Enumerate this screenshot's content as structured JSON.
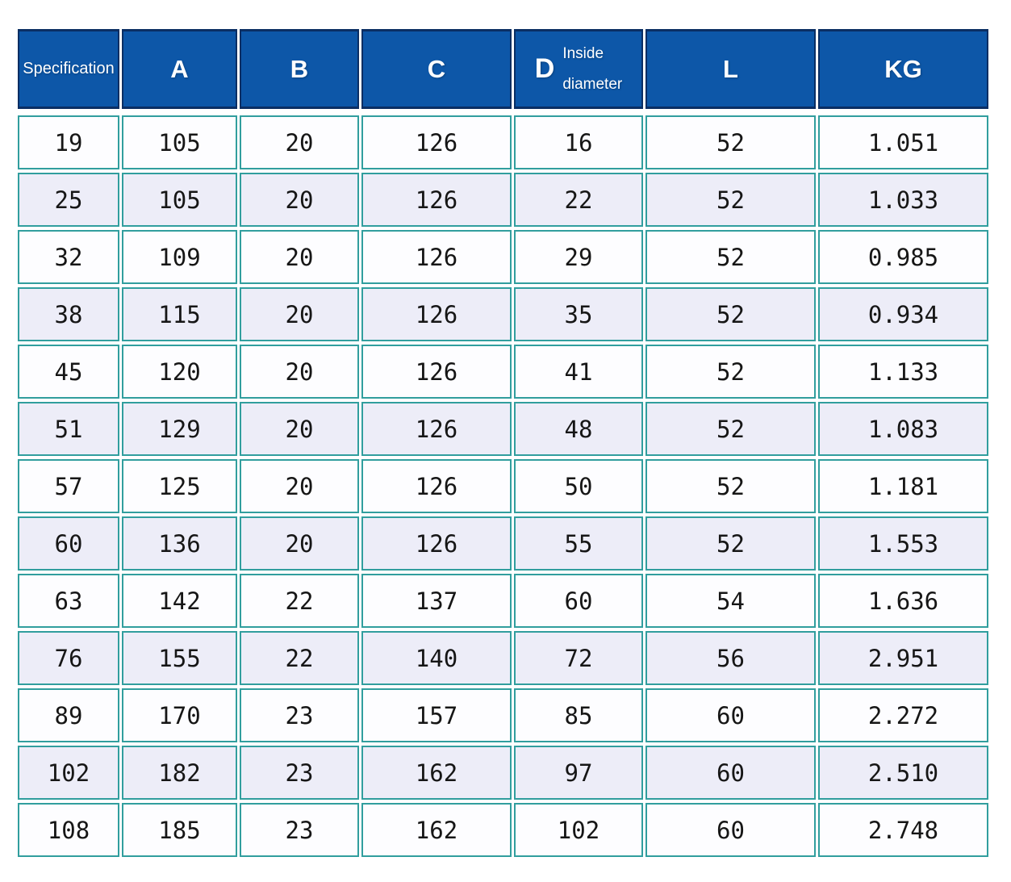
{
  "colors": {
    "header_bg": "#0d57a8",
    "header_border": "#0a2e63",
    "header_text": "#ffffff",
    "body_border": "#319e9e",
    "row_bg": "#fdfdff",
    "row_alt_bg": "#ededf8",
    "cell_text": "#161616"
  },
  "header": {
    "spec": "Specification",
    "a": "A",
    "b": "B",
    "c": "C",
    "d": "D",
    "d_sub1": "Inside",
    "d_sub2": "diameter",
    "l": "L",
    "kg": "KG"
  },
  "body": {
    "rows": [
      [
        "19",
        "105",
        "20",
        "126",
        "16",
        "52",
        "1.051"
      ],
      [
        "25",
        "105",
        "20",
        "126",
        "22",
        "52",
        "1.033"
      ],
      [
        "32",
        "109",
        "20",
        "126",
        "29",
        "52",
        "0.985"
      ],
      [
        "38",
        "115",
        "20",
        "126",
        "35",
        "52",
        "0.934"
      ],
      [
        "45",
        "120",
        "20",
        "126",
        "41",
        "52",
        "1.133"
      ],
      [
        "51",
        "129",
        "20",
        "126",
        "48",
        "52",
        "1.083"
      ],
      [
        "57",
        "125",
        "20",
        "126",
        "50",
        "52",
        "1.181"
      ],
      [
        "60",
        "136",
        "20",
        "126",
        "55",
        "52",
        "1.553"
      ],
      [
        "63",
        "142",
        "22",
        "137",
        "60",
        "54",
        "1.636"
      ],
      [
        "76",
        "155",
        "22",
        "140",
        "72",
        "56",
        "2.951"
      ],
      [
        "89",
        "170",
        "23",
        "157",
        "85",
        "60",
        "2.272"
      ],
      [
        "102",
        "182",
        "23",
        "162",
        "97",
        "60",
        "2.510"
      ],
      [
        "108",
        "185",
        "23",
        "162",
        "102",
        "60",
        "2.748"
      ]
    ]
  },
  "chart_data": {
    "type": "table",
    "title": "",
    "columns": [
      "Specification",
      "A",
      "B",
      "C",
      "D Inside diameter",
      "L",
      "KG"
    ],
    "rows": [
      [
        19,
        105,
        20,
        126,
        16,
        52,
        1.051
      ],
      [
        25,
        105,
        20,
        126,
        22,
        52,
        1.033
      ],
      [
        32,
        109,
        20,
        126,
        29,
        52,
        0.985
      ],
      [
        38,
        115,
        20,
        126,
        35,
        52,
        0.934
      ],
      [
        45,
        120,
        20,
        126,
        41,
        52,
        1.133
      ],
      [
        51,
        129,
        20,
        126,
        48,
        52,
        1.083
      ],
      [
        57,
        125,
        20,
        126,
        50,
        52,
        1.181
      ],
      [
        60,
        136,
        20,
        126,
        55,
        52,
        1.553
      ],
      [
        63,
        142,
        22,
        137,
        60,
        54,
        1.636
      ],
      [
        76,
        155,
        22,
        140,
        72,
        56,
        2.951
      ],
      [
        89,
        170,
        23,
        157,
        85,
        60,
        2.272
      ],
      [
        102,
        182,
        23,
        162,
        97,
        60,
        2.51
      ],
      [
        108,
        185,
        23,
        162,
        102,
        60,
        2.748
      ]
    ]
  }
}
